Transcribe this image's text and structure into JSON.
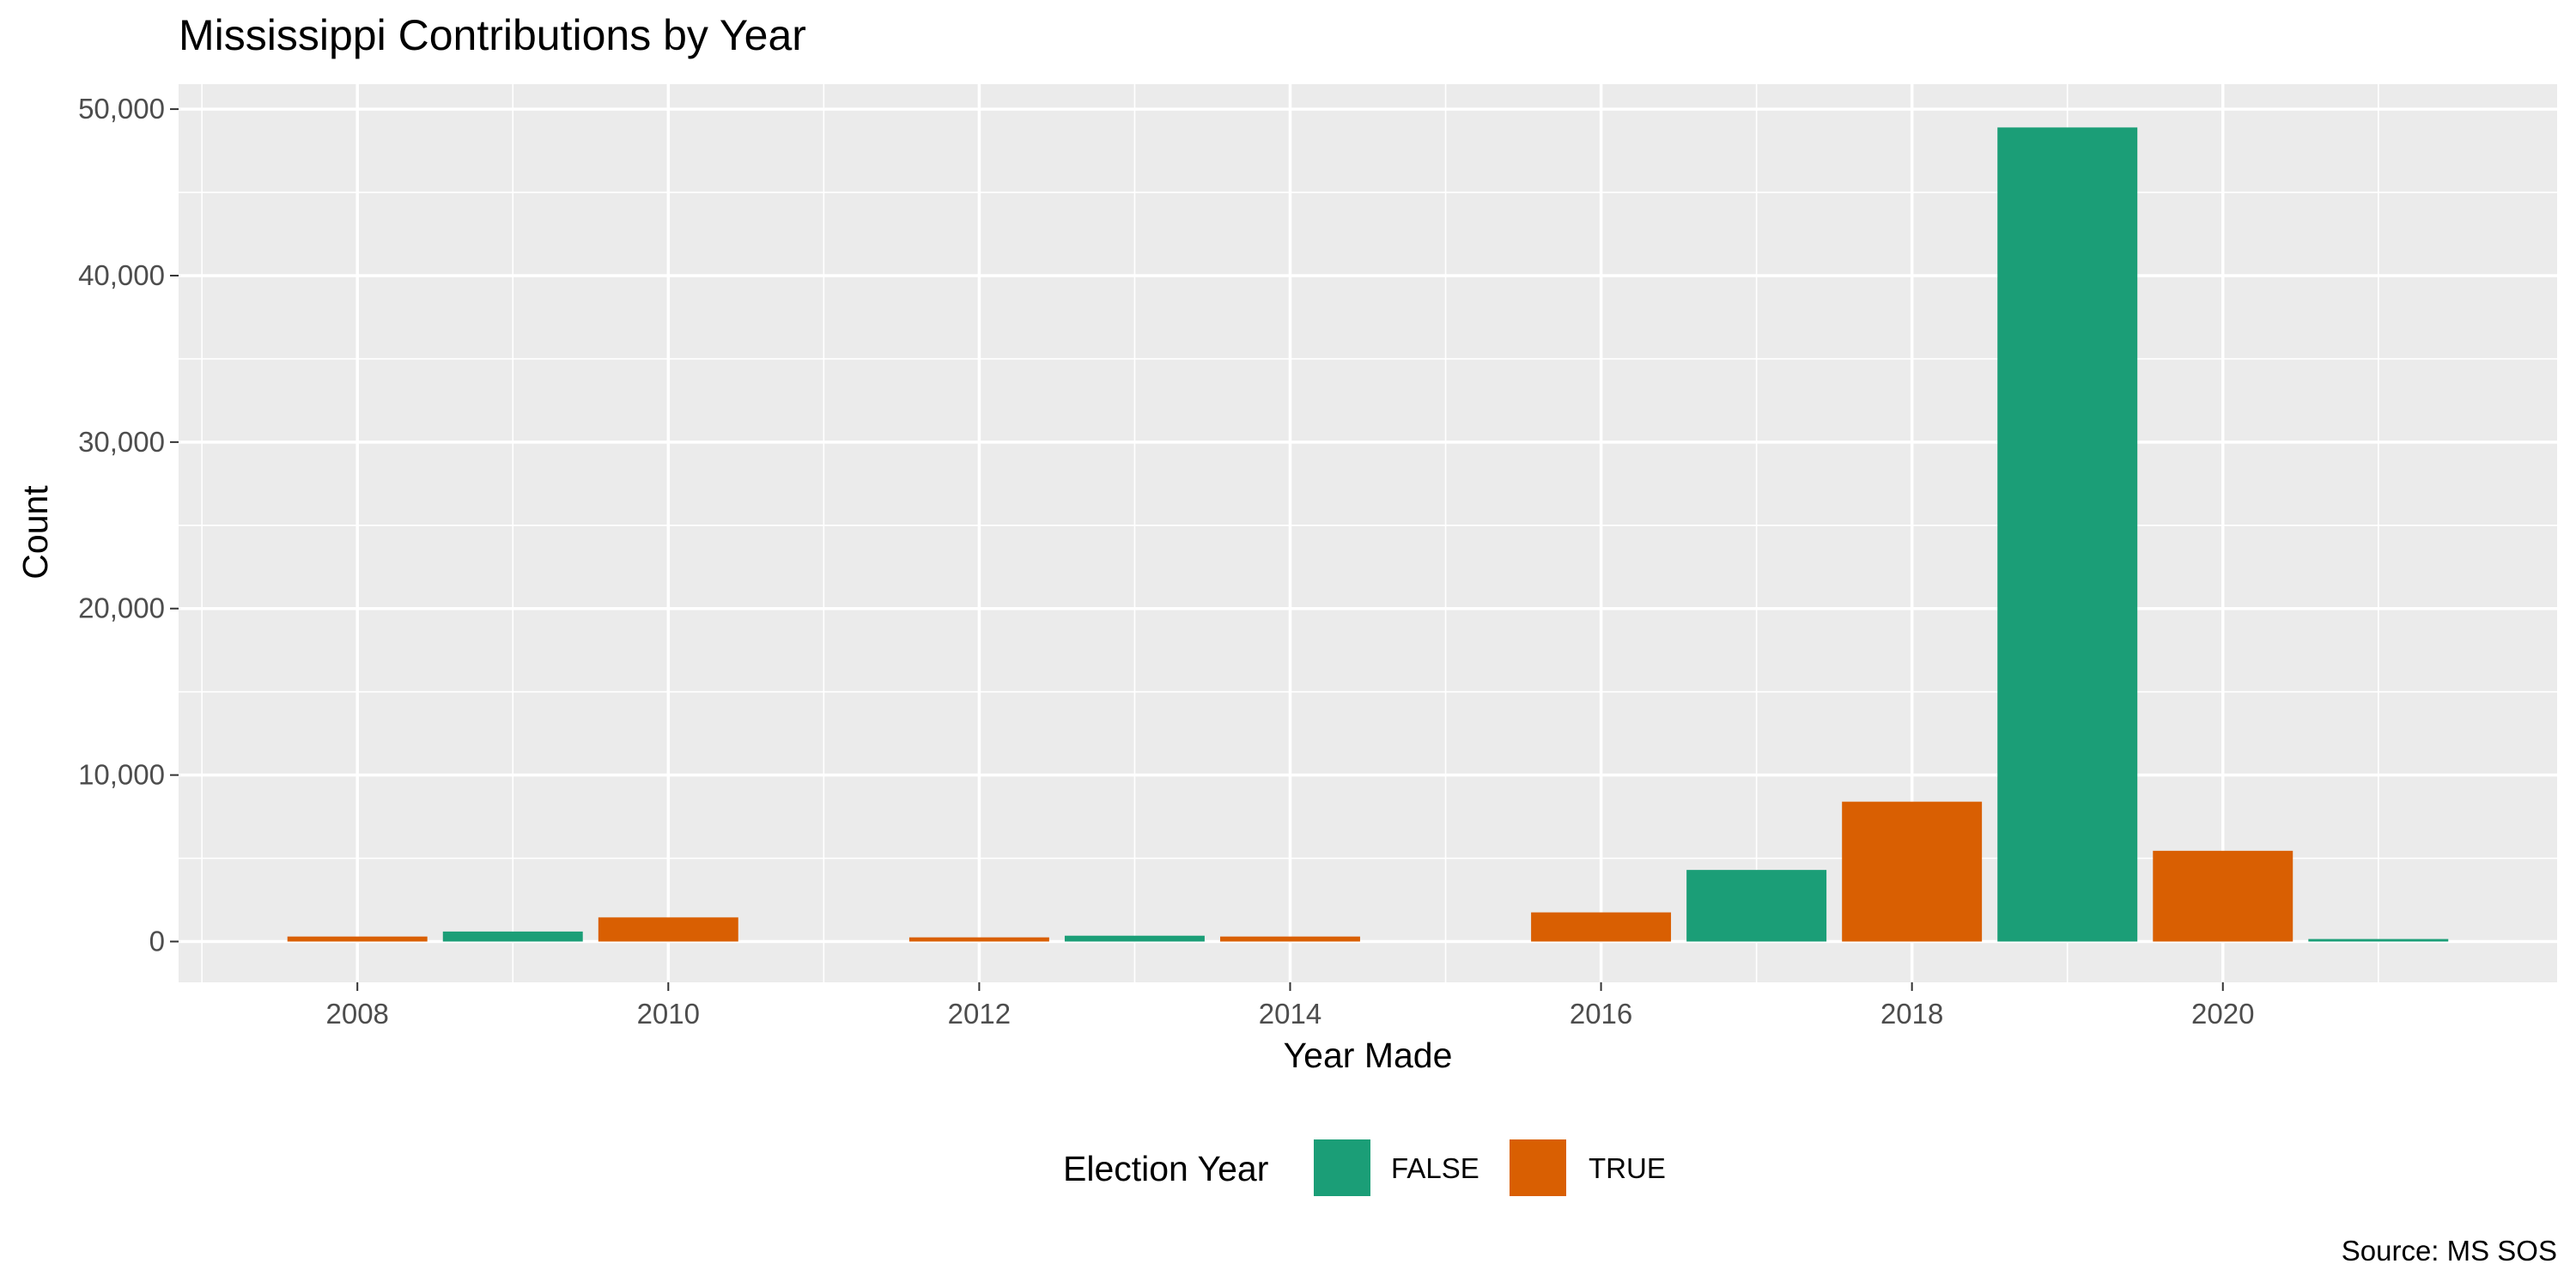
{
  "chart_data": {
    "type": "bar",
    "title": "Mississippi Contributions by Year",
    "xlabel": "Year Made",
    "ylabel": "Count",
    "caption": "Source: MS SOS",
    "x": [
      2008,
      2009,
      2010,
      2012,
      2013,
      2014,
      2016,
      2017,
      2018,
      2019,
      2020,
      2021
    ],
    "values": [
      300,
      600,
      1450,
      250,
      350,
      300,
      1750,
      4300,
      8400,
      48900,
      5450,
      150
    ],
    "election_year": [
      true,
      false,
      true,
      true,
      false,
      true,
      true,
      false,
      true,
      false,
      true,
      false
    ],
    "xticks": [
      2008,
      2010,
      2012,
      2014,
      2016,
      2018,
      2020
    ],
    "xtick_labels": [
      "2008",
      "2010",
      "2012",
      "2014",
      "2016",
      "2018",
      "2020"
    ],
    "xlim": [
      2006.85,
      2022.15
    ],
    "ylim": [
      -2450,
      51500
    ],
    "yticks": [
      0,
      10000,
      20000,
      30000,
      40000,
      50000
    ],
    "ytick_labels": [
      "0",
      "10,000",
      "20,000",
      "30,000",
      "40,000",
      "50,000"
    ],
    "grid": true,
    "legend": {
      "title": "Election Year",
      "position": "bottom",
      "entries": [
        {
          "label": "FALSE",
          "color": "#1b9e77"
        },
        {
          "label": "TRUE",
          "color": "#d95f02"
        }
      ]
    },
    "colors": {
      "false": "#1b9e77",
      "true": "#d95f02",
      "panel": "#ebebeb",
      "grid": "#ffffff"
    }
  }
}
